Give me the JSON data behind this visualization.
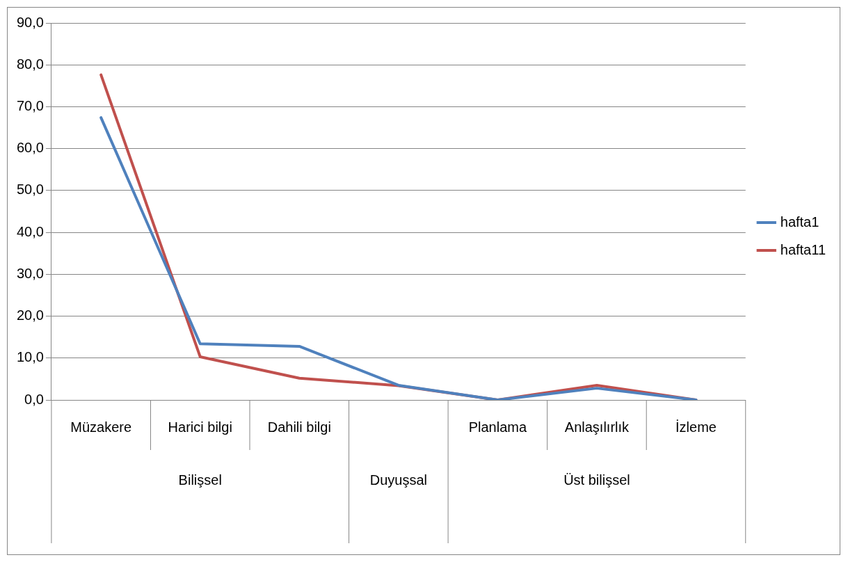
{
  "chart_data": {
    "type": "line",
    "categories": [
      "Müzakere",
      "Harici bilgi",
      "Dahili bilgi",
      null,
      "Planlama",
      "Anlaşılırlık",
      "İzleme"
    ],
    "series": [
      {
        "name": "hafta1",
        "color": "#4f81bd",
        "values": [
          67.4,
          13.4,
          12.8,
          3.5,
          0,
          2.8,
          0
        ]
      },
      {
        "name": "hafta11",
        "color": "#c0504d",
        "values": [
          77.6,
          10.3,
          5.2,
          3.4,
          0,
          3.5,
          0
        ]
      }
    ],
    "ylim": [
      0,
      90
    ],
    "yticks": [
      {
        "value": 0,
        "label": "0,0"
      },
      {
        "value": 10,
        "label": "10,0"
      },
      {
        "value": 20,
        "label": "20,0"
      },
      {
        "value": 30,
        "label": "30,0"
      },
      {
        "value": 40,
        "label": "40,0"
      },
      {
        "value": 50,
        "label": "50,0"
      },
      {
        "value": 60,
        "label": "60,0"
      },
      {
        "value": 70,
        "label": "70,0"
      },
      {
        "value": 80,
        "label": "80,0"
      },
      {
        "value": 90,
        "label": "90,0"
      }
    ],
    "annotations": [
      "Bilişsel",
      "Duyuşsal",
      "Üst bilişsel"
    ],
    "grid": "y",
    "legend": "right",
    "marker": "none",
    "line_style": "solid"
  }
}
